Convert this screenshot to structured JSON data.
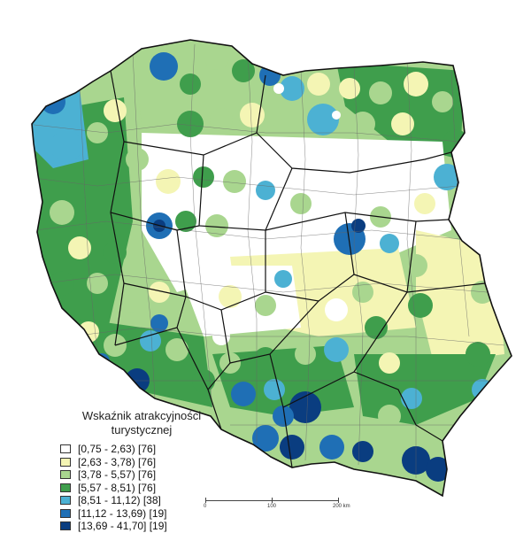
{
  "legend": {
    "title_line1": "Wskaźnik atrakcyjności",
    "title_line2": "turystycznej",
    "items": [
      {
        "label": "[0,75 - 2,63) [76]",
        "color": "#ffffff"
      },
      {
        "label": "[2,63 - 3,78) [76]",
        "color": "#f4f5b4"
      },
      {
        "label": "[3,78 - 5,57) [76]",
        "color": "#a9d68f"
      },
      {
        "label": "[5,57 - 8,51) [76]",
        "color": "#3f9e4c"
      },
      {
        "label": "[8,51 - 11,12) [38]",
        "color": "#4cb1d3"
      },
      {
        "label": "[11,12 - 13,69) [19]",
        "color": "#1f6fb5"
      },
      {
        "label": "[13,69 - 41,70] [19]",
        "color": "#0a3d80"
      }
    ]
  },
  "scale": {
    "label_0": "0",
    "label_100": "100",
    "label_200": "200 km"
  }
}
